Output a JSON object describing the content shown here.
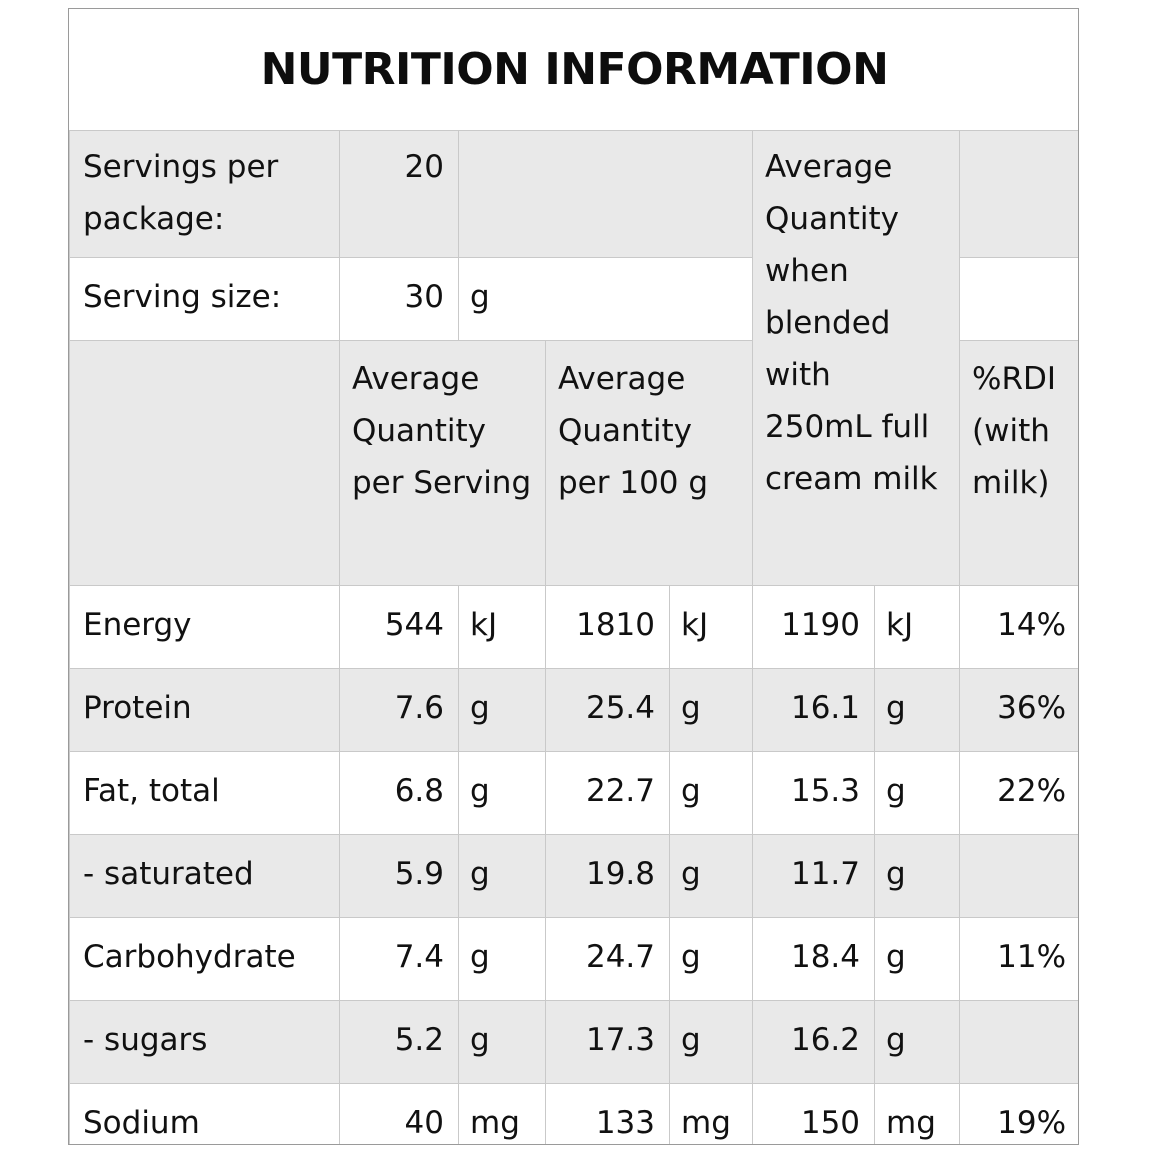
{
  "title": "NUTRITION INFORMATION",
  "servings_per_package": {
    "label": "Servings per package:",
    "value": "20"
  },
  "serving_size": {
    "label": "Serving size:",
    "value": "30",
    "unit": "g"
  },
  "headers": {
    "per_serving": "Average Quantity per Serving",
    "per_100g": "Average Quantity per 100 g",
    "blended": "Average Quantity when blended with 250mL full cream milk",
    "rdi": "%RDI (with milk)"
  },
  "rows": [
    {
      "name": "Energy",
      "serving": "544",
      "serving_unit": "kJ",
      "per100": "1810",
      "per100_unit": "kJ",
      "blended": "1190",
      "blended_unit": "kJ",
      "rdi": "14%"
    },
    {
      "name": "Protein",
      "serving": "7.6",
      "serving_unit": "g",
      "per100": "25.4",
      "per100_unit": "g",
      "blended": "16.1",
      "blended_unit": "g",
      "rdi": "36%"
    },
    {
      "name": "Fat, total",
      "serving": "6.8",
      "serving_unit": "g",
      "per100": "22.7",
      "per100_unit": "g",
      "blended": "15.3",
      "blended_unit": "g",
      "rdi": "22%"
    },
    {
      "name": "- saturated",
      "serving": "5.9",
      "serving_unit": "g",
      "per100": "19.8",
      "per100_unit": "g",
      "blended": "11.7",
      "blended_unit": "g",
      "rdi": ""
    },
    {
      "name": "Carbohydrate",
      "serving": "7.4",
      "serving_unit": "g",
      "per100": "24.7",
      "per100_unit": "g",
      "blended": "18.4",
      "blended_unit": "g",
      "rdi": "11%"
    },
    {
      "name": "- sugars",
      "serving": "5.2",
      "serving_unit": "g",
      "per100": "17.3",
      "per100_unit": "g",
      "blended": "16.2",
      "blended_unit": "g",
      "rdi": ""
    },
    {
      "name": "Sodium",
      "serving": "40",
      "serving_unit": "mg",
      "per100": "133",
      "per100_unit": "mg",
      "blended": "150",
      "blended_unit": "mg",
      "rdi": "19%"
    }
  ]
}
